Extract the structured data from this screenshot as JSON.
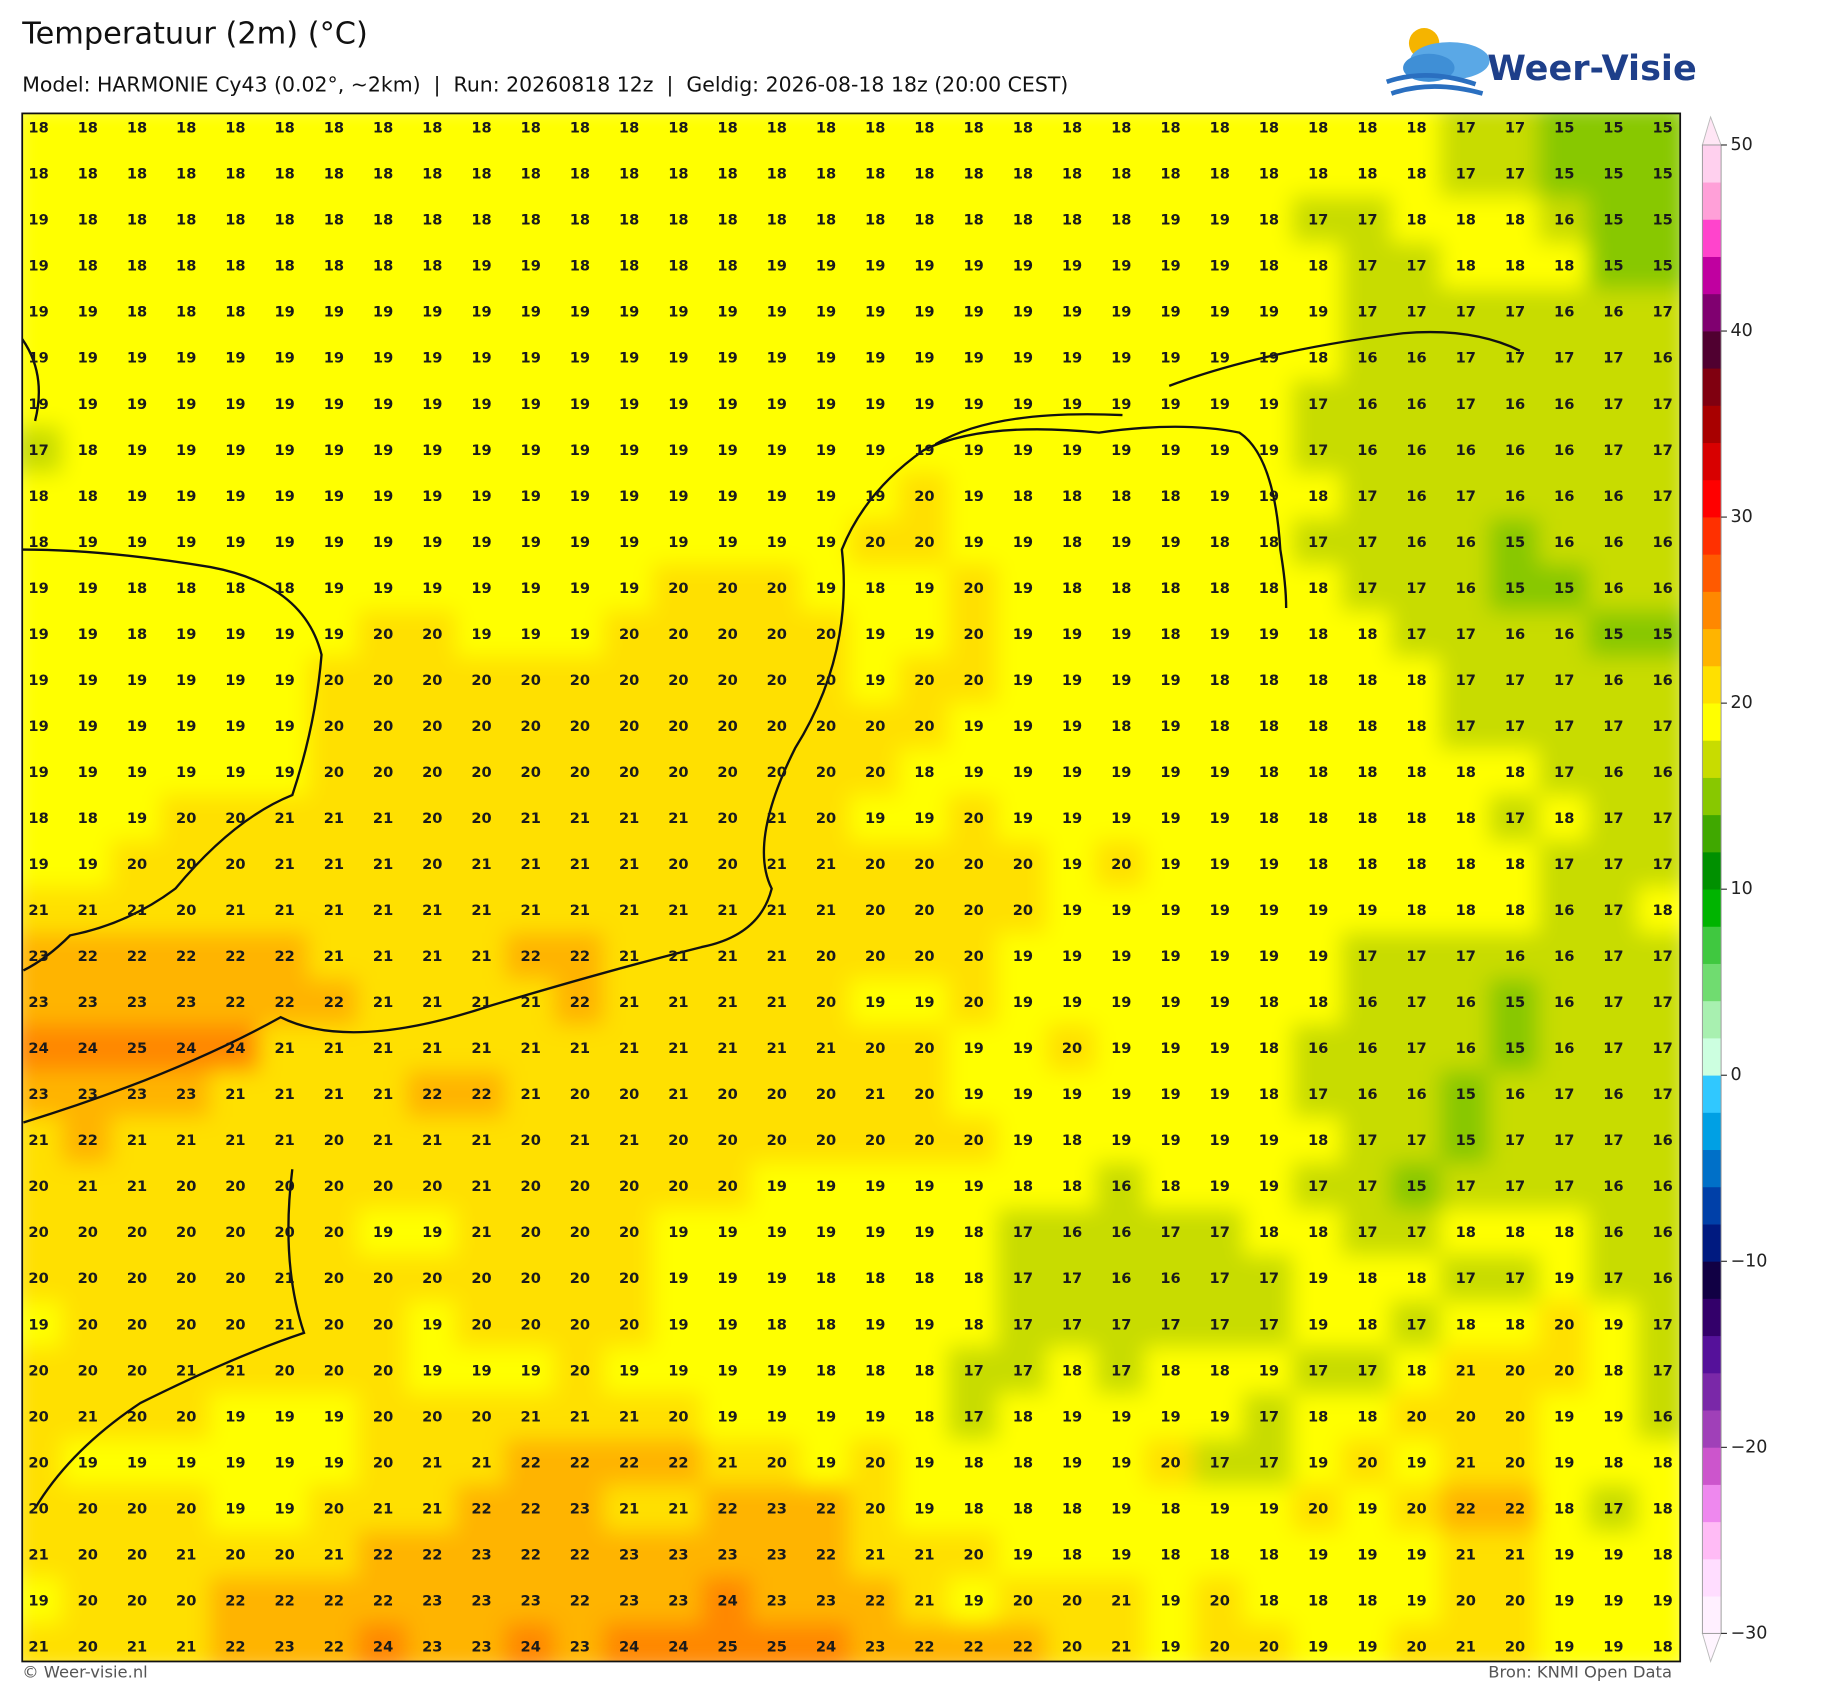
{
  "header": {
    "title": "Temperatuur (2m) (°C)",
    "subtitle": "Model: HARMONIE Cy43 (0.02°, ~2km)  |  Run: 20260818 12z  |  Geldig: 2026-08-18 18z (20:00 CEST)",
    "logo": "Weer-Visie"
  },
  "chart_data": {
    "type": "grid",
    "values": [
      [
        18,
        18,
        18,
        18,
        18,
        18,
        18,
        18,
        18,
        18,
        18,
        18,
        18,
        18,
        18,
        18,
        18,
        18,
        18,
        18,
        18,
        18,
        18,
        18,
        18,
        18,
        18,
        18,
        18,
        17,
        17,
        15,
        15,
        15
      ],
      [
        18,
        18,
        18,
        18,
        18,
        18,
        18,
        18,
        18,
        18,
        18,
        18,
        18,
        18,
        18,
        18,
        18,
        18,
        18,
        18,
        18,
        18,
        18,
        18,
        18,
        18,
        18,
        18,
        18,
        17,
        17,
        15,
        15,
        15
      ],
      [
        19,
        18,
        18,
        18,
        18,
        18,
        18,
        18,
        18,
        18,
        18,
        18,
        18,
        18,
        18,
        18,
        18,
        18,
        18,
        18,
        18,
        18,
        18,
        19,
        19,
        18,
        17,
        17,
        18,
        18,
        18,
        16,
        15,
        15
      ],
      [
        19,
        18,
        18,
        18,
        18,
        18,
        18,
        18,
        18,
        19,
        19,
        18,
        18,
        18,
        18,
        19,
        19,
        19,
        19,
        19,
        19,
        19,
        19,
        19,
        19,
        18,
        18,
        17,
        17,
        18,
        18,
        18,
        15,
        15
      ],
      [
        19,
        19,
        18,
        18,
        18,
        19,
        19,
        19,
        19,
        19,
        19,
        19,
        19,
        19,
        19,
        19,
        19,
        19,
        19,
        19,
        19,
        19,
        19,
        19,
        19,
        19,
        19,
        17,
        17,
        17,
        17,
        16,
        16,
        17
      ],
      [
        19,
        19,
        19,
        19,
        19,
        19,
        19,
        19,
        19,
        19,
        19,
        19,
        19,
        19,
        19,
        19,
        19,
        19,
        19,
        19,
        19,
        19,
        19,
        19,
        19,
        19,
        18,
        16,
        16,
        17,
        17,
        17,
        17,
        16
      ],
      [
        19,
        19,
        19,
        19,
        19,
        19,
        19,
        19,
        19,
        19,
        19,
        19,
        19,
        19,
        19,
        19,
        19,
        19,
        19,
        19,
        19,
        19,
        19,
        19,
        19,
        19,
        17,
        16,
        16,
        17,
        16,
        16,
        17,
        17
      ],
      [
        17,
        18,
        19,
        19,
        19,
        19,
        19,
        19,
        19,
        19,
        19,
        19,
        19,
        19,
        19,
        19,
        19,
        19,
        19,
        19,
        19,
        19,
        19,
        19,
        19,
        19,
        17,
        16,
        16,
        16,
        16,
        16,
        17,
        17
      ],
      [
        18,
        18,
        19,
        19,
        19,
        19,
        19,
        19,
        19,
        19,
        19,
        19,
        19,
        19,
        19,
        19,
        19,
        19,
        20,
        19,
        18,
        18,
        18,
        18,
        19,
        19,
        18,
        17,
        16,
        17,
        16,
        16,
        16,
        17
      ],
      [
        18,
        19,
        19,
        19,
        19,
        19,
        19,
        19,
        19,
        19,
        19,
        19,
        19,
        19,
        19,
        19,
        19,
        20,
        20,
        19,
        19,
        18,
        19,
        19,
        18,
        18,
        17,
        17,
        16,
        16,
        15,
        16,
        16,
        16
      ],
      [
        19,
        19,
        18,
        18,
        18,
        18,
        19,
        19,
        19,
        19,
        19,
        19,
        19,
        20,
        20,
        20,
        19,
        18,
        19,
        20,
        19,
        18,
        18,
        18,
        18,
        18,
        18,
        17,
        17,
        16,
        15,
        15,
        16,
        16
      ],
      [
        19,
        19,
        18,
        19,
        19,
        19,
        19,
        20,
        20,
        19,
        19,
        19,
        20,
        20,
        20,
        20,
        20,
        19,
        19,
        20,
        19,
        19,
        19,
        18,
        19,
        19,
        18,
        18,
        17,
        17,
        16,
        16,
        15,
        15
      ],
      [
        19,
        19,
        19,
        19,
        19,
        19,
        20,
        20,
        20,
        20,
        20,
        20,
        20,
        20,
        20,
        20,
        20,
        19,
        20,
        20,
        19,
        19,
        19,
        19,
        18,
        18,
        18,
        18,
        18,
        17,
        17,
        17,
        16,
        16
      ],
      [
        19,
        19,
        19,
        19,
        19,
        19,
        20,
        20,
        20,
        20,
        20,
        20,
        20,
        20,
        20,
        20,
        20,
        20,
        20,
        19,
        19,
        19,
        18,
        19,
        18,
        18,
        18,
        18,
        18,
        17,
        17,
        17,
        17,
        17
      ],
      [
        19,
        19,
        19,
        19,
        19,
        19,
        20,
        20,
        20,
        20,
        20,
        20,
        20,
        20,
        20,
        20,
        20,
        20,
        18,
        19,
        19,
        19,
        19,
        19,
        19,
        18,
        18,
        18,
        18,
        18,
        18,
        17,
        16,
        16
      ],
      [
        18,
        18,
        19,
        20,
        20,
        21,
        21,
        21,
        20,
        20,
        21,
        21,
        21,
        21,
        20,
        21,
        20,
        19,
        19,
        20,
        19,
        19,
        19,
        19,
        19,
        18,
        18,
        18,
        18,
        18,
        17,
        18,
        17,
        17
      ],
      [
        19,
        19,
        20,
        20,
        20,
        21,
        21,
        21,
        20,
        21,
        21,
        21,
        21,
        20,
        20,
        21,
        21,
        20,
        20,
        20,
        20,
        19,
        20,
        19,
        19,
        19,
        18,
        18,
        18,
        18,
        18,
        17,
        17,
        17
      ],
      [
        21,
        21,
        21,
        20,
        21,
        21,
        21,
        21,
        21,
        21,
        21,
        21,
        21,
        21,
        21,
        21,
        21,
        20,
        20,
        20,
        20,
        19,
        19,
        19,
        19,
        19,
        19,
        19,
        18,
        18,
        18,
        16,
        17,
        18
      ],
      [
        23,
        22,
        22,
        22,
        22,
        22,
        21,
        21,
        21,
        21,
        22,
        22,
        21,
        21,
        21,
        21,
        20,
        20,
        20,
        20,
        19,
        19,
        19,
        19,
        19,
        19,
        19,
        17,
        17,
        17,
        16,
        16,
        17,
        17
      ],
      [
        23,
        23,
        23,
        23,
        22,
        22,
        22,
        21,
        21,
        21,
        21,
        22,
        21,
        21,
        21,
        21,
        20,
        19,
        19,
        20,
        19,
        19,
        19,
        19,
        19,
        18,
        18,
        16,
        17,
        16,
        15,
        16,
        17,
        17
      ],
      [
        24,
        24,
        25,
        24,
        24,
        21,
        21,
        21,
        21,
        21,
        21,
        21,
        21,
        21,
        21,
        21,
        21,
        20,
        20,
        19,
        19,
        20,
        19,
        19,
        19,
        18,
        16,
        16,
        17,
        16,
        15,
        16,
        17,
        17
      ],
      [
        23,
        23,
        23,
        23,
        21,
        21,
        21,
        21,
        22,
        22,
        21,
        20,
        20,
        21,
        20,
        20,
        20,
        21,
        20,
        19,
        19,
        19,
        19,
        19,
        19,
        18,
        17,
        16,
        16,
        15,
        16,
        17,
        16,
        17
      ],
      [
        21,
        22,
        21,
        21,
        21,
        21,
        20,
        21,
        21,
        21,
        20,
        21,
        21,
        20,
        20,
        20,
        20,
        20,
        20,
        20,
        19,
        18,
        19,
        19,
        19,
        19,
        18,
        17,
        17,
        15,
        17,
        17,
        17,
        16
      ],
      [
        20,
        21,
        21,
        20,
        20,
        20,
        20,
        20,
        20,
        21,
        20,
        20,
        20,
        20,
        20,
        19,
        19,
        19,
        19,
        19,
        18,
        18,
        16,
        18,
        19,
        19,
        17,
        17,
        15,
        17,
        17,
        17,
        16,
        16
      ],
      [
        20,
        20,
        20,
        20,
        20,
        20,
        20,
        19,
        19,
        21,
        20,
        20,
        20,
        19,
        19,
        19,
        19,
        19,
        19,
        18,
        17,
        16,
        16,
        17,
        17,
        18,
        18,
        17,
        17,
        18,
        18,
        18,
        16,
        16
      ],
      [
        20,
        20,
        20,
        20,
        20,
        21,
        20,
        20,
        20,
        20,
        20,
        20,
        20,
        19,
        19,
        19,
        18,
        18,
        18,
        18,
        17,
        17,
        16,
        16,
        17,
        17,
        19,
        18,
        18,
        17,
        17,
        19,
        17,
        16
      ],
      [
        19,
        20,
        20,
        20,
        20,
        21,
        20,
        20,
        19,
        20,
        20,
        20,
        20,
        19,
        19,
        18,
        18,
        19,
        19,
        18,
        17,
        17,
        17,
        17,
        17,
        17,
        19,
        18,
        17,
        18,
        18,
        20,
        19,
        17
      ],
      [
        20,
        20,
        20,
        21,
        21,
        20,
        20,
        20,
        19,
        19,
        19,
        20,
        19,
        19,
        19,
        19,
        18,
        18,
        18,
        17,
        17,
        18,
        17,
        18,
        18,
        19,
        17,
        17,
        18,
        21,
        20,
        20,
        18,
        17
      ],
      [
        20,
        21,
        20,
        20,
        19,
        19,
        19,
        20,
        20,
        20,
        21,
        21,
        21,
        20,
        19,
        19,
        19,
        19,
        18,
        17,
        18,
        19,
        19,
        19,
        19,
        17,
        18,
        18,
        20,
        20,
        20,
        19,
        19,
        16
      ],
      [
        20,
        19,
        19,
        19,
        19,
        19,
        19,
        20,
        21,
        21,
        22,
        22,
        22,
        22,
        21,
        20,
        19,
        20,
        19,
        18,
        18,
        19,
        19,
        20,
        17,
        17,
        19,
        20,
        19,
        21,
        20,
        19,
        18,
        18
      ],
      [
        20,
        20,
        20,
        20,
        19,
        19,
        20,
        21,
        21,
        22,
        22,
        23,
        21,
        21,
        22,
        23,
        22,
        20,
        19,
        18,
        18,
        18,
        19,
        18,
        19,
        19,
        20,
        19,
        20,
        22,
        22,
        18,
        17,
        18
      ],
      [
        21,
        20,
        20,
        21,
        20,
        20,
        21,
        22,
        22,
        23,
        22,
        22,
        23,
        23,
        23,
        23,
        22,
        21,
        21,
        20,
        19,
        18,
        19,
        18,
        18,
        18,
        19,
        19,
        19,
        21,
        21,
        19,
        19,
        18
      ],
      [
        19,
        20,
        20,
        20,
        22,
        22,
        22,
        22,
        23,
        23,
        23,
        22,
        23,
        23,
        24,
        23,
        23,
        22,
        21,
        19,
        20,
        20,
        21,
        19,
        20,
        18,
        18,
        18,
        19,
        20,
        20,
        19,
        19,
        19
      ],
      [
        21,
        20,
        21,
        21,
        22,
        23,
        22,
        24,
        23,
        23,
        24,
        23,
        24,
        24,
        25,
        25,
        24,
        23,
        22,
        22,
        22,
        20,
        21,
        19,
        20,
        20,
        19,
        19,
        20,
        21,
        20,
        19,
        19,
        18
      ]
    ],
    "colorbar": {
      "lim": [
        -30,
        50
      ],
      "levels": [
        -30,
        -28,
        -26,
        -24,
        -22,
        -20,
        -18,
        -16,
        -14,
        -12,
        -10,
        -8,
        -6,
        -4,
        -2,
        0,
        2,
        4,
        6,
        8,
        10,
        12,
        14,
        16,
        18,
        20,
        22,
        24,
        26,
        28,
        30,
        32,
        34,
        36,
        38,
        40,
        42,
        44,
        46,
        48,
        50
      ],
      "colors": [
        "#fff0ff",
        "#ffddff",
        "#ffbbf5",
        "#ee88ee",
        "#cc55cc",
        "#a040b8",
        "#7a28a8",
        "#55119a",
        "#33006a",
        "#110044",
        "#001a80",
        "#0040a8",
        "#0070c8",
        "#00a0e4",
        "#30c8ff",
        "#ccffe0",
        "#a8f0b0",
        "#70dc70",
        "#40c840",
        "#00b400",
        "#009000",
        "#40a800",
        "#88c800",
        "#c8dc00",
        "#ffff00",
        "#ffe000",
        "#ffb400",
        "#ff8800",
        "#ff5a00",
        "#ff3000",
        "#ff0000",
        "#d80000",
        "#a80000",
        "#800010",
        "#500030",
        "#800070",
        "#c000a0",
        "#ff44cc",
        "#ffa0d8",
        "#ffd0ee"
      ],
      "ticks": [
        {
          "value": -30,
          "label": "−30"
        },
        {
          "value": -20,
          "label": "−20"
        },
        {
          "value": -10,
          "label": "−10"
        },
        0,
        10,
        20,
        30,
        40,
        50
      ]
    }
  },
  "footer": {
    "left": "© Weer-visie.nl",
    "right": "Bron: KNMI Open Data"
  }
}
